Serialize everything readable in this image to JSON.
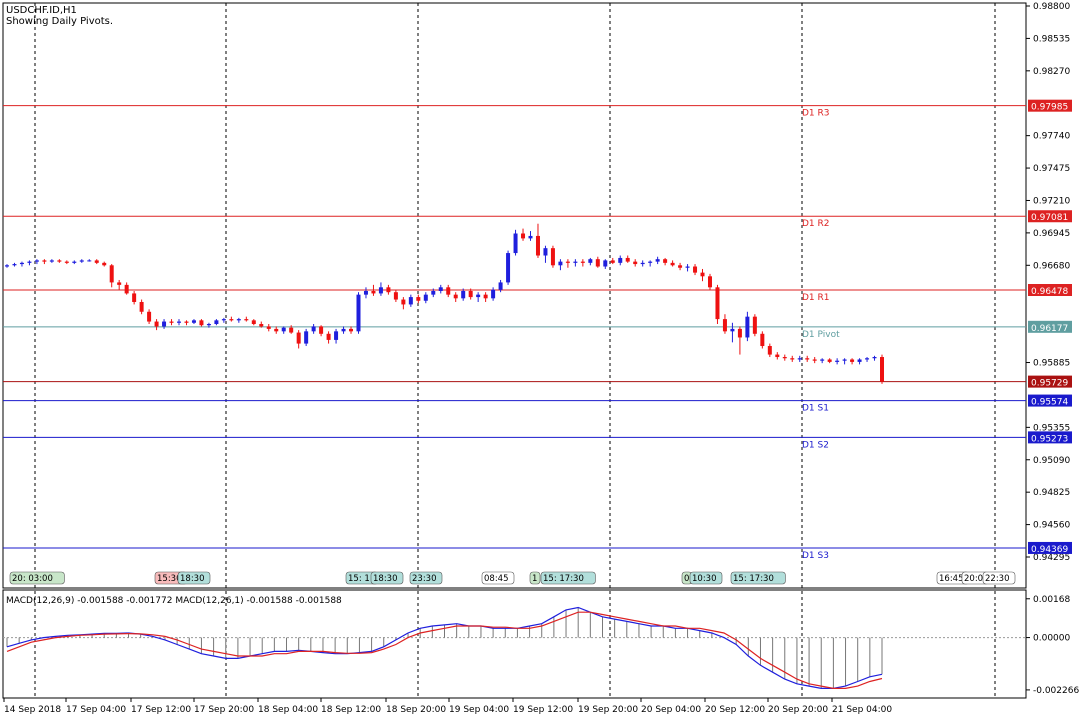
{
  "chart_data": [
    {
      "type": "candlestick",
      "symbol": "USDCHF.ID",
      "timeframe": "H1",
      "header": "USDCHF.ID,H1",
      "subtitle": "Showing Daily Pivots.",
      "ylim": [
        0.94295,
        0.988
      ],
      "y_ticks": [
        "0.98800",
        "0.98535",
        "0.98270",
        "0.97740",
        "0.97475",
        "0.97210",
        "0.96945",
        "0.96680",
        "0.95885",
        "0.95355",
        "0.95090",
        "0.94825",
        "0.94560",
        "0.94295"
      ],
      "current_price": "0.95729",
      "pivot_levels": [
        {
          "label": "D1 R3",
          "value": "0.97985",
          "color": "#dd2222"
        },
        {
          "label": "D1 R2",
          "value": "0.97081",
          "color": "#dd2222"
        },
        {
          "label": "D1 R1",
          "value": "0.96478",
          "color": "#dd2222"
        },
        {
          "label": "D1 Pivot",
          "value": "0.96177",
          "color": "#5f9ea0"
        },
        {
          "label": "D1 S1",
          "value": "0.95574",
          "color": "#1a1acc"
        },
        {
          "label": "D1 S2",
          "value": "0.95273",
          "color": "#1a1acc"
        },
        {
          "label": "D1 S3",
          "value": "0.94369",
          "color": "#1a1acc"
        }
      ],
      "session_tags": [
        {
          "text": "20: 03:00",
          "color": "#c8e6c9"
        },
        {
          "text": "15:30",
          "color": "#f8bbbb"
        },
        {
          "text": "18:30",
          "color": "#b2dfdb"
        },
        {
          "text": "15: 1",
          "color": "#b2dfdb"
        },
        {
          "text": "18:30",
          "color": "#b2dfdb"
        },
        {
          "text": "23:30",
          "color": "#b2dfdb"
        },
        {
          "text": "08:45",
          "color": "#ffffff"
        },
        {
          "text": "1",
          "color": "#c8e6c9"
        },
        {
          "text": "15: 17:30",
          "color": "#b2dfdb"
        },
        {
          "text": "0",
          "color": "#c8e6c9"
        },
        {
          "text": "10:30",
          "color": "#b2dfdb"
        },
        {
          "text": "15: 17:30",
          "color": "#b2dfdb"
        },
        {
          "text": "16:45",
          "color": "#ffffff"
        },
        {
          "text": "20:0",
          "color": "#ffffff"
        },
        {
          "text": "22:30",
          "color": "#ffffff"
        }
      ],
      "candles": [
        [
          0.9667,
          0.9669,
          0.9666,
          0.9668
        ],
        [
          0.9668,
          0.967,
          0.9667,
          0.9669
        ],
        [
          0.9669,
          0.9671,
          0.9667,
          0.967
        ],
        [
          0.967,
          0.9672,
          0.9668,
          0.9671
        ],
        [
          0.9671,
          0.9673,
          0.9669,
          0.9672
        ],
        [
          0.9672,
          0.9673,
          0.9669,
          0.9671
        ],
        [
          0.9671,
          0.9673,
          0.967,
          0.9672
        ],
        [
          0.9672,
          0.9673,
          0.967,
          0.9671
        ],
        [
          0.9671,
          0.9672,
          0.9669,
          0.967
        ],
        [
          0.967,
          0.9672,
          0.9669,
          0.9671
        ],
        [
          0.9671,
          0.9673,
          0.967,
          0.9672
        ],
        [
          0.9672,
          0.9673,
          0.9671,
          0.9672
        ],
        [
          0.9672,
          0.9673,
          0.9669,
          0.967
        ],
        [
          0.967,
          0.9671,
          0.9667,
          0.9668
        ],
        [
          0.9668,
          0.9669,
          0.965,
          0.9654
        ],
        [
          0.9654,
          0.9656,
          0.9648,
          0.9652
        ],
        [
          0.9652,
          0.9654,
          0.9644,
          0.9645
        ],
        [
          0.9645,
          0.9647,
          0.9636,
          0.9638
        ],
        [
          0.9638,
          0.964,
          0.9628,
          0.963
        ],
        [
          0.963,
          0.9632,
          0.962,
          0.9622
        ],
        [
          0.9622,
          0.9624,
          0.9615,
          0.9618
        ],
        [
          0.9618,
          0.9624,
          0.9616,
          0.9622
        ],
        [
          0.9622,
          0.9624,
          0.9619,
          0.9621
        ],
        [
          0.9621,
          0.9624,
          0.9619,
          0.9622
        ],
        [
          0.9622,
          0.9623,
          0.9619,
          0.9621
        ],
        [
          0.9621,
          0.9624,
          0.962,
          0.9623
        ],
        [
          0.9623,
          0.9624,
          0.9618,
          0.9619
        ],
        [
          0.9619,
          0.9621,
          0.9617,
          0.962
        ],
        [
          0.962,
          0.9624,
          0.9619,
          0.9623
        ],
        [
          0.9623,
          0.9625,
          0.9621,
          0.9624
        ],
        [
          0.9624,
          0.9626,
          0.9622,
          0.9623
        ],
        [
          0.9623,
          0.9625,
          0.9621,
          0.9624
        ],
        [
          0.9624,
          0.9626,
          0.9622,
          0.9623
        ],
        [
          0.9623,
          0.9624,
          0.9619,
          0.962
        ],
        [
          0.962,
          0.9622,
          0.9617,
          0.9618
        ],
        [
          0.9618,
          0.962,
          0.9614,
          0.9616
        ],
        [
          0.9616,
          0.9618,
          0.9612,
          0.9614
        ],
        [
          0.9614,
          0.9618,
          0.9612,
          0.9617
        ],
        [
          0.9617,
          0.9619,
          0.9612,
          0.9613
        ],
        [
          0.9613,
          0.9615,
          0.96,
          0.9604
        ],
        [
          0.9604,
          0.9616,
          0.9602,
          0.9614
        ],
        [
          0.9614,
          0.962,
          0.9612,
          0.9618
        ],
        [
          0.9618,
          0.9619,
          0.961,
          0.9612
        ],
        [
          0.9612,
          0.9614,
          0.9604,
          0.9607
        ],
        [
          0.9607,
          0.9616,
          0.9604,
          0.9614
        ],
        [
          0.9614,
          0.9618,
          0.9612,
          0.9616
        ],
        [
          0.9616,
          0.9618,
          0.9612,
          0.9614
        ],
        [
          0.9614,
          0.9646,
          0.9612,
          0.9644
        ],
        [
          0.9644,
          0.965,
          0.9641,
          0.9647
        ],
        [
          0.9647,
          0.9652,
          0.9643,
          0.9645
        ],
        [
          0.9645,
          0.9654,
          0.9643,
          0.965
        ],
        [
          0.965,
          0.9652,
          0.9644,
          0.9646
        ],
        [
          0.9646,
          0.9648,
          0.9638,
          0.964
        ],
        [
          0.964,
          0.9642,
          0.9632,
          0.9636
        ],
        [
          0.9636,
          0.9644,
          0.9634,
          0.9642
        ],
        [
          0.9642,
          0.9644,
          0.9637,
          0.9639
        ],
        [
          0.9639,
          0.9646,
          0.9637,
          0.9644
        ],
        [
          0.9644,
          0.9649,
          0.9642,
          0.9647
        ],
        [
          0.9647,
          0.9652,
          0.9645,
          0.965
        ],
        [
          0.965,
          0.9652,
          0.9642,
          0.9644
        ],
        [
          0.9644,
          0.9646,
          0.9638,
          0.9641
        ],
        [
          0.9641,
          0.9649,
          0.9639,
          0.9647
        ],
        [
          0.9647,
          0.9649,
          0.964,
          0.9642
        ],
        [
          0.9642,
          0.9646,
          0.9638,
          0.9644
        ],
        [
          0.9644,
          0.9646,
          0.9638,
          0.9641
        ],
        [
          0.9641,
          0.965,
          0.9639,
          0.9648
        ],
        [
          0.9648,
          0.9656,
          0.9646,
          0.9654
        ],
        [
          0.9654,
          0.968,
          0.9652,
          0.9678
        ],
        [
          0.9678,
          0.9697,
          0.9676,
          0.9694
        ],
        [
          0.9694,
          0.9698,
          0.9688,
          0.969
        ],
        [
          0.969,
          0.9696,
          0.9688,
          0.9692
        ],
        [
          0.9692,
          0.9702,
          0.9674,
          0.9676
        ],
        [
          0.9676,
          0.9684,
          0.967,
          0.9682
        ],
        [
          0.9682,
          0.9684,
          0.9666,
          0.9668
        ],
        [
          0.9668,
          0.9673,
          0.9664,
          0.9671
        ],
        [
          0.9671,
          0.9673,
          0.9666,
          0.967
        ],
        [
          0.967,
          0.9673,
          0.9667,
          0.9671
        ],
        [
          0.9671,
          0.9673,
          0.9667,
          0.967
        ],
        [
          0.967,
          0.9674,
          0.9668,
          0.9673
        ],
        [
          0.9673,
          0.9675,
          0.9666,
          0.9667
        ],
        [
          0.9667,
          0.9673,
          0.9665,
          0.9672
        ],
        [
          0.9672,
          0.9674,
          0.9669,
          0.967
        ],
        [
          0.967,
          0.9676,
          0.9668,
          0.9674
        ],
        [
          0.9674,
          0.9676,
          0.967,
          0.9671
        ],
        [
          0.9671,
          0.9673,
          0.9667,
          0.9669
        ],
        [
          0.9669,
          0.9672,
          0.9667,
          0.967
        ],
        [
          0.967,
          0.9672,
          0.9667,
          0.9671
        ],
        [
          0.9671,
          0.9675,
          0.9669,
          0.9673
        ],
        [
          0.9673,
          0.9674,
          0.9668,
          0.967
        ],
        [
          0.967,
          0.9672,
          0.9667,
          0.9668
        ],
        [
          0.9668,
          0.967,
          0.9664,
          0.9666
        ],
        [
          0.9666,
          0.9669,
          0.9663,
          0.9667
        ],
        [
          0.9667,
          0.9669,
          0.966,
          0.9662
        ],
        [
          0.9662,
          0.9665,
          0.9655,
          0.9659
        ],
        [
          0.9659,
          0.9661,
          0.9648,
          0.965
        ],
        [
          0.965,
          0.9652,
          0.962,
          0.9624
        ],
        [
          0.9624,
          0.9628,
          0.9612,
          0.9614
        ],
        [
          0.9614,
          0.9621,
          0.9605,
          0.9616
        ],
        [
          0.9616,
          0.9618,
          0.9595,
          0.9609
        ],
        [
          0.9609,
          0.963,
          0.9606,
          0.9626
        ],
        [
          0.9626,
          0.9628,
          0.961,
          0.9612
        ],
        [
          0.9612,
          0.9614,
          0.96,
          0.9602
        ],
        [
          0.9602,
          0.9604,
          0.9593,
          0.9595
        ],
        [
          0.9595,
          0.9597,
          0.9591,
          0.9593
        ],
        [
          0.9593,
          0.9595,
          0.959,
          0.9592
        ],
        [
          0.9592,
          0.9594,
          0.9589,
          0.9591
        ],
        [
          0.9591,
          0.9594,
          0.9589,
          0.9592
        ],
        [
          0.9592,
          0.9594,
          0.9589,
          0.9591
        ],
        [
          0.9591,
          0.9593,
          0.9588,
          0.959
        ],
        [
          0.959,
          0.9592,
          0.9588,
          0.9591
        ],
        [
          0.9591,
          0.9592,
          0.9588,
          0.9589
        ],
        [
          0.9589,
          0.9592,
          0.9587,
          0.959
        ],
        [
          0.959,
          0.9592,
          0.9587,
          0.9591
        ],
        [
          0.9591,
          0.9592,
          0.9587,
          0.9589
        ],
        [
          0.9589,
          0.9592,
          0.9587,
          0.9591
        ],
        [
          0.9591,
          0.9593,
          0.9589,
          0.9592
        ],
        [
          0.9592,
          0.9594,
          0.959,
          0.9593
        ],
        [
          0.9593,
          0.9595,
          0.9571,
          0.9573
        ]
      ],
      "bull_color": "#1f1fdd",
      "bear_color": "#ee1111",
      "x_tick_labels": [
        "14 Sep 2018",
        "17 Sep 04:00",
        "17 Sep 12:00",
        "17 Sep 20:00",
        "18 Sep 04:00",
        "18 Sep 12:00",
        "18 Sep 20:00",
        "19 Sep 04:00",
        "19 Sep 12:00",
        "19 Sep 20:00",
        "20 Sep 04:00",
        "20 Sep 12:00",
        "20 Sep 20:00",
        "21 Sep 04:00"
      ]
    },
    {
      "type": "line",
      "title": "MACD(12,26,9) -0.001588 -0.001772 MACD(12,26,1) -0.001588 -0.001588",
      "ylim": [
        -0.0024,
        0.0018
      ],
      "y_ticks": [
        "0.00168",
        "0.00000",
        "-0.002266"
      ],
      "series": [
        {
          "color": "#1f1fdd",
          "values": [
            -0.0004,
            -0.00025,
            -0.0001,
            0.0,
            5e-05,
            0.0001,
            0.00012,
            0.00015,
            0.00018,
            0.00018,
            0.0002,
            0.00015,
            5e-05,
            -0.0001,
            -0.0003,
            -0.0005,
            -0.0007,
            -0.0008,
            -0.0009,
            -0.0009,
            -0.0008,
            -0.0007,
            -0.0006,
            -0.0006,
            -0.00055,
            -0.0006,
            -0.00065,
            -0.0007,
            -0.0007,
            -0.00065,
            -0.0006,
            -0.0004,
            -0.0001,
            0.0002,
            0.0004,
            0.0005,
            0.00055,
            0.0006,
            0.0005,
            0.0005,
            0.0004,
            0.0004,
            0.0004,
            0.0005,
            0.0006,
            0.0009,
            0.0012,
            0.0013,
            0.0011,
            0.0009,
            0.0008,
            0.0007,
            0.0006,
            0.0005,
            0.0005,
            0.0004,
            0.0004,
            0.0003,
            0.0002,
            0.0,
            -0.0003,
            -0.0008,
            -0.0012,
            -0.0015,
            -0.0018,
            -0.002,
            -0.0021,
            -0.0022,
            -0.0022,
            -0.0021,
            -0.0019,
            -0.0017,
            -0.00159
          ]
        },
        {
          "color": "#dd2222",
          "values": [
            -0.0006,
            -0.0004,
            -0.0002,
            -0.0001,
            0.0,
            5e-05,
            0.0001,
            0.00012,
            0.00015,
            0.00016,
            0.00017,
            0.00016,
            0.00012,
            5e-05,
            -0.0001,
            -0.0003,
            -0.0005,
            -0.0006,
            -0.0007,
            -0.0008,
            -0.0008,
            -0.0008,
            -0.0007,
            -0.0007,
            -0.0006,
            -0.0006,
            -0.0006,
            -0.00065,
            -0.00068,
            -0.00068,
            -0.00065,
            -0.0005,
            -0.0003,
            0.0,
            0.0002,
            0.0003,
            0.0004,
            0.0005,
            0.0005,
            0.0005,
            0.00045,
            0.00045,
            0.0004,
            0.0004,
            0.0005,
            0.0007,
            0.0009,
            0.0011,
            0.0011,
            0.001,
            0.0009,
            0.0008,
            0.0007,
            0.0006,
            0.0005,
            0.0005,
            0.0004,
            0.0004,
            0.0003,
            0.0002,
            -0.0001,
            -0.0005,
            -0.0009,
            -0.0012,
            -0.0015,
            -0.0018,
            -0.002,
            -0.0021,
            -0.0022,
            -0.0022,
            -0.0021,
            -0.0019,
            -0.00177
          ]
        }
      ],
      "histogram": [
        -0.0004,
        -0.00025,
        -0.0001,
        0.0,
        5e-05,
        0.0001,
        0.00012,
        0.00015,
        0.00018,
        0.00018,
        0.0002,
        0.00015,
        5e-05,
        -0.0001,
        -0.0003,
        -0.0005,
        -0.0007,
        -0.0008,
        -0.0009,
        -0.0009,
        -0.0008,
        -0.0007,
        -0.0006,
        -0.0006,
        -0.00055,
        -0.0006,
        -0.00065,
        -0.0007,
        -0.0007,
        -0.00065,
        -0.0006,
        -0.0004,
        -0.0001,
        0.0002,
        0.0004,
        0.0005,
        0.00055,
        0.0006,
        0.0005,
        0.0005,
        0.0004,
        0.0004,
        0.0004,
        0.0005,
        0.0006,
        0.0009,
        0.0012,
        0.0013,
        0.0011,
        0.0009,
        0.0008,
        0.0007,
        0.0006,
        0.0005,
        0.0005,
        0.0004,
        0.0004,
        0.0003,
        0.0002,
        0.0,
        -0.0003,
        -0.0008,
        -0.0012,
        -0.0015,
        -0.0018,
        -0.002,
        -0.0021,
        -0.0022,
        -0.0022,
        -0.0021,
        -0.0019,
        -0.0017,
        -0.00159
      ]
    }
  ]
}
